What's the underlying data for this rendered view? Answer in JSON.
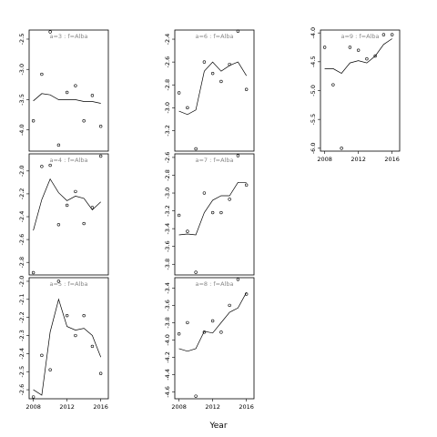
{
  "chart_data": {
    "type": "scatter",
    "xlabel": "Year",
    "panels": [
      {
        "title": "a=3 : f=Alba",
        "ylim": [
          -4.35,
          -2.35
        ],
        "yticks": [
          -2.5,
          -3.0,
          -3.5,
          -4.0
        ],
        "ytick_labels": [
          "-2.5",
          "-3.0",
          "-3.5",
          "-4.0"
        ],
        "xticks": [],
        "xtick_labels": [],
        "points": [
          [
            2008,
            -3.85
          ],
          [
            2009,
            -3.08
          ],
          [
            2010,
            -2.38
          ],
          [
            2011,
            -4.25
          ],
          [
            2012,
            -3.38
          ],
          [
            2013,
            -3.27
          ],
          [
            2014,
            -3.85
          ],
          [
            2015,
            -3.43
          ],
          [
            2016,
            -3.94
          ]
        ],
        "line": [
          [
            2008,
            -3.52
          ],
          [
            2009,
            -3.4
          ],
          [
            2010,
            -3.42
          ],
          [
            2011,
            -3.5
          ],
          [
            2012,
            -3.5
          ],
          [
            2013,
            -3.5
          ],
          [
            2014,
            -3.53
          ],
          [
            2015,
            -3.53
          ],
          [
            2016,
            -3.56
          ]
        ]
      },
      {
        "title": "a=6 : f=Alba",
        "ylim": [
          -3.38,
          -2.32
        ],
        "yticks": [
          -2.4,
          -2.6,
          -2.8,
          -3.0,
          -3.2
        ],
        "ytick_labels": [
          "-2.4",
          "-2.6",
          "-2.8",
          "-3.0",
          "-3.2"
        ],
        "xticks": [],
        "xtick_labels": [],
        "points": [
          [
            2008,
            -2.87
          ],
          [
            2009,
            -3.0
          ],
          [
            2010,
            -3.36
          ],
          [
            2011,
            -2.6
          ],
          [
            2012,
            -2.7
          ],
          [
            2013,
            -2.77
          ],
          [
            2014,
            -2.62
          ],
          [
            2015,
            -2.33
          ],
          [
            2016,
            -2.84
          ]
        ],
        "line": [
          [
            2008,
            -3.03
          ],
          [
            2009,
            -3.06
          ],
          [
            2010,
            -3.02
          ],
          [
            2011,
            -2.68
          ],
          [
            2012,
            -2.6
          ],
          [
            2013,
            -2.68
          ],
          [
            2014,
            -2.63
          ],
          [
            2015,
            -2.6
          ],
          [
            2016,
            -2.72
          ]
        ]
      },
      {
        "title": "a=9 : f=Alba",
        "ylim": [
          -6.05,
          -3.95
        ],
        "yticks": [
          -4.0,
          -4.5,
          -5.0,
          -5.5,
          -6.0
        ],
        "ytick_labels": [
          "-4.0",
          "-4.5",
          "-5.0",
          "-5.5",
          "-6.0"
        ],
        "xticks": [
          2008,
          2012,
          2016
        ],
        "xtick_labels": [
          "2008",
          "2012",
          "2016"
        ],
        "points": [
          [
            2008,
            -4.25
          ],
          [
            2009,
            -4.9
          ],
          [
            2010,
            -6.0
          ],
          [
            2011,
            -4.25
          ],
          [
            2012,
            -4.3
          ],
          [
            2013,
            -4.45
          ],
          [
            2014,
            -4.4
          ],
          [
            2015,
            -4.03
          ],
          [
            2016,
            -4.03
          ]
        ],
        "line": [
          [
            2008,
            -4.62
          ],
          [
            2009,
            -4.62
          ],
          [
            2010,
            -4.7
          ],
          [
            2011,
            -4.52
          ],
          [
            2012,
            -4.48
          ],
          [
            2013,
            -4.52
          ],
          [
            2014,
            -4.4
          ],
          [
            2015,
            -4.2
          ],
          [
            2016,
            -4.1
          ]
        ]
      },
      {
        "title": "a=4 : f=Alba",
        "ylim": [
          -2.91,
          -1.85
        ],
        "yticks": [
          -2.0,
          -2.2,
          -2.4,
          -2.6,
          -2.8
        ],
        "ytick_labels": [
          "-2.0",
          "-2.2",
          "-2.4",
          "-2.6",
          "-2.8"
        ],
        "xticks": [],
        "xtick_labels": [],
        "points": [
          [
            2008,
            -2.89
          ],
          [
            2009,
            -1.96
          ],
          [
            2010,
            -1.95
          ],
          [
            2011,
            -2.47
          ],
          [
            2012,
            -2.3
          ],
          [
            2013,
            -2.18
          ],
          [
            2014,
            -2.46
          ],
          [
            2015,
            -2.32
          ],
          [
            2016,
            -1.87
          ]
        ],
        "line": [
          [
            2008,
            -2.52
          ],
          [
            2009,
            -2.25
          ],
          [
            2010,
            -2.07
          ],
          [
            2011,
            -2.19
          ],
          [
            2012,
            -2.26
          ],
          [
            2013,
            -2.22
          ],
          [
            2014,
            -2.24
          ],
          [
            2015,
            -2.34
          ],
          [
            2016,
            -2.27
          ]
        ]
      },
      {
        "title": "a=7 : f=Alba",
        "ylim": [
          -3.92,
          -2.56
        ],
        "yticks": [
          -2.6,
          -2.8,
          -3.0,
          -3.2,
          -3.4,
          -3.6,
          -3.8
        ],
        "ytick_labels": [
          "-2.6",
          "-2.8",
          "-3.0",
          "-3.2",
          "-3.4",
          "-3.6",
          "-3.8"
        ],
        "xticks": [],
        "xtick_labels": [],
        "points": [
          [
            2008,
            -3.25
          ],
          [
            2009,
            -3.43
          ],
          [
            2010,
            -3.89
          ],
          [
            2011,
            -3.0
          ],
          [
            2012,
            -3.22
          ],
          [
            2013,
            -3.22
          ],
          [
            2014,
            -3.07
          ],
          [
            2015,
            -2.58
          ],
          [
            2016,
            -2.91
          ]
        ],
        "line": [
          [
            2008,
            -3.47
          ],
          [
            2009,
            -3.46
          ],
          [
            2010,
            -3.47
          ],
          [
            2011,
            -3.22
          ],
          [
            2012,
            -3.08
          ],
          [
            2013,
            -3.03
          ],
          [
            2014,
            -3.03
          ],
          [
            2015,
            -2.88
          ],
          [
            2016,
            -2.88
          ]
        ]
      },
      {
        "title": "a=5 : f=Alba",
        "ylim": [
          -2.65,
          -1.98
        ],
        "yticks": [
          -2.0,
          -2.1,
          -2.2,
          -2.3,
          -2.4,
          -2.5,
          -2.6
        ],
        "ytick_labels": [
          "-2.0",
          "-2.1",
          "-2.2",
          "-2.3",
          "-2.4",
          "-2.5",
          "-2.6"
        ],
        "xticks": [
          2008,
          2012,
          2016
        ],
        "xtick_labels": [
          "2008",
          "2012",
          "2016"
        ],
        "points": [
          [
            2008,
            -2.64
          ],
          [
            2009,
            -2.41
          ],
          [
            2010,
            -2.49
          ],
          [
            2011,
            -2.0
          ],
          [
            2012,
            -2.19
          ],
          [
            2013,
            -2.3
          ],
          [
            2014,
            -2.19
          ],
          [
            2015,
            -2.36
          ],
          [
            2016,
            -2.51
          ]
        ],
        "line": [
          [
            2008,
            -2.6
          ],
          [
            2009,
            -2.63
          ],
          [
            2010,
            -2.28
          ],
          [
            2011,
            -2.1
          ],
          [
            2012,
            -2.25
          ],
          [
            2013,
            -2.27
          ],
          [
            2014,
            -2.26
          ],
          [
            2015,
            -2.3
          ],
          [
            2016,
            -2.42
          ]
        ]
      },
      {
        "title": "a=8 : f=Alba",
        "ylim": [
          -4.68,
          -3.28
        ],
        "yticks": [
          -3.4,
          -3.6,
          -3.8,
          -4.0,
          -4.2,
          -4.4,
          -4.6
        ],
        "ytick_labels": [
          "-3.4",
          "-3.6",
          "-3.8",
          "-4.0",
          "-4.2",
          "-4.4",
          "-4.6"
        ],
        "xticks": [
          2008,
          2012,
          2016
        ],
        "xtick_labels": [
          "2008",
          "2012",
          "2016"
        ],
        "points": [
          [
            2008,
            -3.93
          ],
          [
            2009,
            -3.8
          ],
          [
            2010,
            -4.65
          ],
          [
            2011,
            -3.91
          ],
          [
            2012,
            -3.78
          ],
          [
            2013,
            -3.91
          ],
          [
            2014,
            -3.6
          ],
          [
            2015,
            -3.3
          ],
          [
            2016,
            -3.47
          ]
        ],
        "line": [
          [
            2008,
            -4.1
          ],
          [
            2009,
            -4.13
          ],
          [
            2010,
            -4.1
          ],
          [
            2011,
            -3.9
          ],
          [
            2012,
            -3.92
          ],
          [
            2013,
            -3.8
          ],
          [
            2014,
            -3.68
          ],
          [
            2015,
            -3.63
          ],
          [
            2016,
            -3.45
          ]
        ]
      }
    ]
  }
}
